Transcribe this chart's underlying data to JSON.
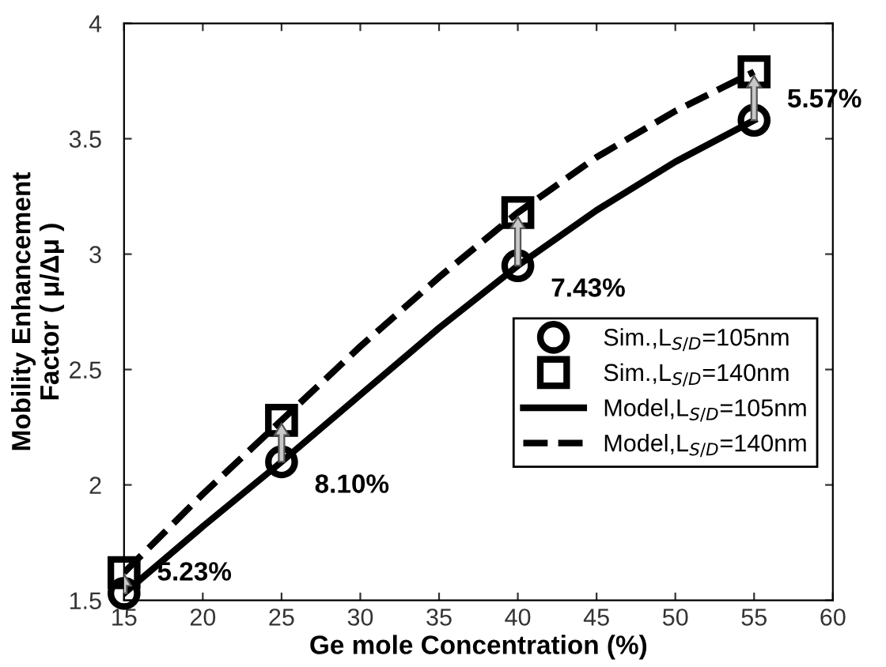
{
  "chart_data": {
    "type": "line",
    "xlabel": "Ge mole Concentration (%)",
    "ylabel": "Mobility Enhancement\nFactor ( μ/Δμ )",
    "x": [
      15,
      25,
      40,
      55
    ],
    "series": [
      {
        "name": "Sim.,L$_{S/D}$=105nm",
        "type": "scatter",
        "marker": "circle",
        "color": "#000000",
        "values": [
          1.53,
          2.1,
          2.95,
          3.58
        ]
      },
      {
        "name": "Sim.,L$_{S/D}$=140nm",
        "type": "scatter",
        "marker": "square",
        "color": "#000000",
        "values": [
          1.62,
          2.28,
          3.18,
          3.79
        ]
      },
      {
        "name": "Model,L$_{S/D}$=105nm",
        "line_style": "solid",
        "color": "#000000",
        "x": [
          15,
          20,
          25,
          30,
          35,
          40,
          45,
          50,
          55
        ],
        "values": [
          1.53,
          1.82,
          2.1,
          2.39,
          2.68,
          2.95,
          3.19,
          3.4,
          3.58
        ]
      },
      {
        "name": "Model,L$_{S/D}$=140nm",
        "line_style": "dashed",
        "color": "#000000",
        "x": [
          15,
          20,
          25,
          30,
          35,
          40,
          45,
          50,
          55
        ],
        "values": [
          1.62,
          1.96,
          2.28,
          2.6,
          2.9,
          3.18,
          3.42,
          3.62,
          3.79
        ]
      }
    ],
    "annotations": [
      {
        "text": "5.23%",
        "x": 15,
        "y": 1.53
      },
      {
        "text": "8.10%",
        "x": 25,
        "y": 2.1
      },
      {
        "text": "7.43%",
        "x": 40,
        "y": 2.95
      },
      {
        "text": "5.57%",
        "x": 55,
        "y": 3.58
      }
    ],
    "xlim": [
      15,
      60
    ],
    "ylim": [
      1.5,
      4
    ],
    "xticks": [
      15,
      20,
      25,
      30,
      35,
      40,
      45,
      50,
      55,
      60
    ],
    "yticks": [
      1.5,
      2,
      2.5,
      3,
      3.5,
      4
    ],
    "legend": "right",
    "grid": false
  }
}
